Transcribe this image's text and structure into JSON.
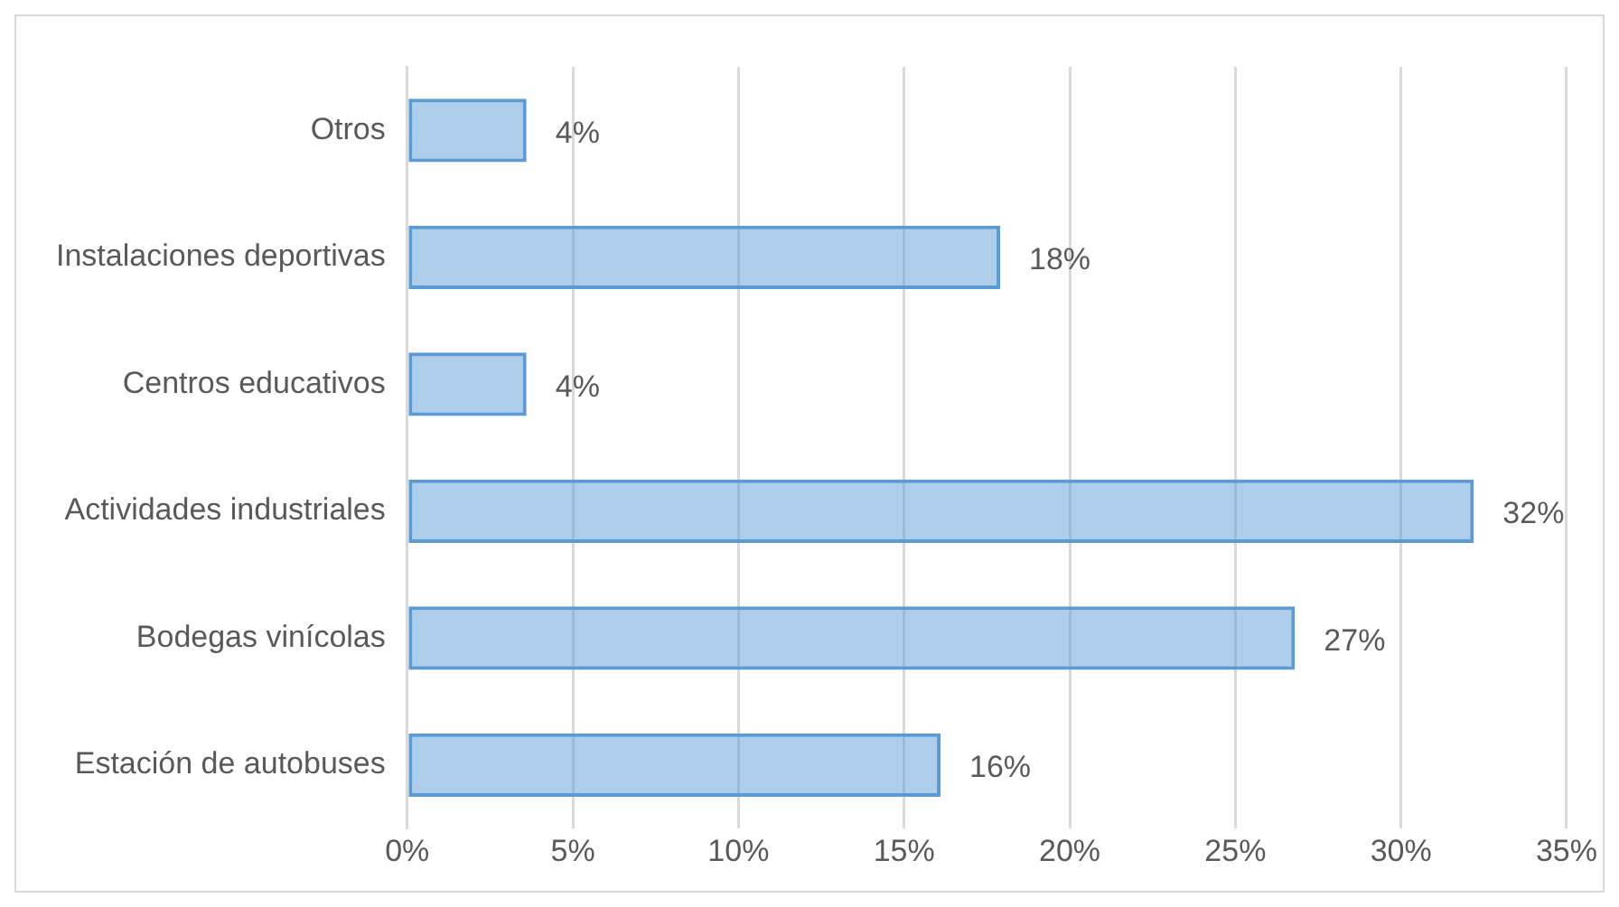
{
  "chart_data": {
    "type": "bar",
    "orientation": "horizontal",
    "categories": [
      "Otros",
      "Instalaciones deportivas",
      "Centros educativos",
      "Actividades industriales",
      "Bodegas vinícolas",
      "Estación de autobuses"
    ],
    "values": [
      3.6,
      17.9,
      3.6,
      32.2,
      26.8,
      16.1
    ],
    "value_labels": [
      "4%",
      "18%",
      "4%",
      "32%",
      "27%",
      "16%"
    ],
    "color": "#5b9bd5",
    "xlim": [
      0,
      35
    ],
    "xticks": [
      {
        "value": 0,
        "label": "0%"
      },
      {
        "value": 5,
        "label": "5%"
      },
      {
        "value": 10,
        "label": "10%"
      },
      {
        "value": 15,
        "label": "15%"
      },
      {
        "value": 20,
        "label": "20%"
      },
      {
        "value": 25,
        "label": "25%"
      },
      {
        "value": 30,
        "label": "30%"
      },
      {
        "value": 35,
        "label": "35%"
      }
    ],
    "grid": "x",
    "legend": false
  }
}
